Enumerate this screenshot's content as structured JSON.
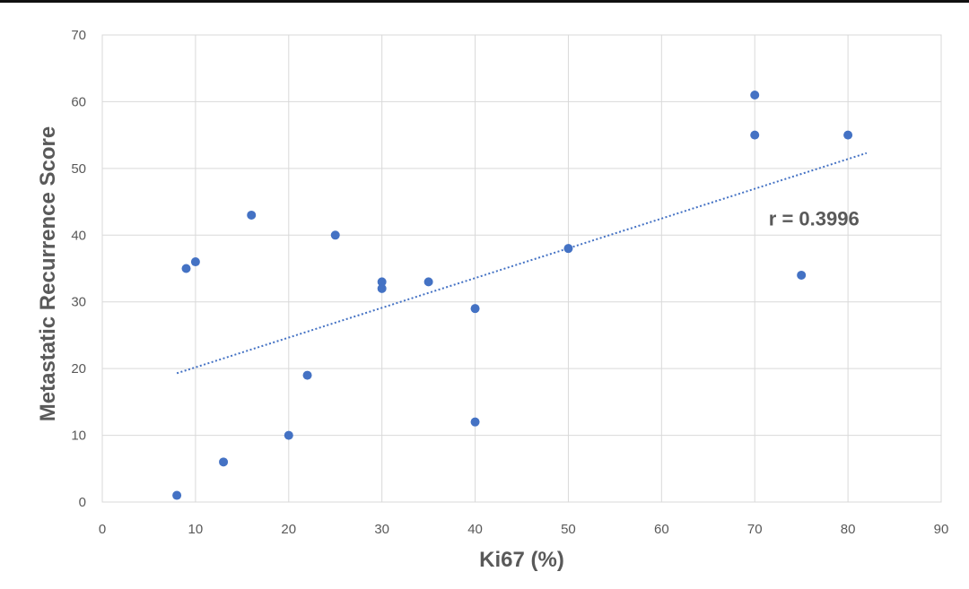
{
  "chart_data": {
    "type": "scatter",
    "title": "",
    "xlabel": "Ki67 (%)",
    "ylabel": "Metastatic Recurrence Score",
    "xlim": [
      0,
      90
    ],
    "ylim": [
      0,
      70
    ],
    "x_ticks": [
      0,
      10,
      20,
      30,
      40,
      50,
      60,
      70,
      80,
      90
    ],
    "y_ticks": [
      0,
      10,
      20,
      30,
      40,
      50,
      60,
      70
    ],
    "grid": true,
    "legend": "none",
    "point_color": "#4472c4",
    "series": [
      {
        "points": [
          {
            "x": 8,
            "y": 1
          },
          {
            "x": 9,
            "y": 35
          },
          {
            "x": 10,
            "y": 36
          },
          {
            "x": 13,
            "y": 6
          },
          {
            "x": 16,
            "y": 43
          },
          {
            "x": 20,
            "y": 10
          },
          {
            "x": 22,
            "y": 19
          },
          {
            "x": 25,
            "y": 40
          },
          {
            "x": 30,
            "y": 33
          },
          {
            "x": 30,
            "y": 32
          },
          {
            "x": 35,
            "y": 33
          },
          {
            "x": 40,
            "y": 29
          },
          {
            "x": 40,
            "y": 12
          },
          {
            "x": 50,
            "y": 38
          },
          {
            "x": 70,
            "y": 61
          },
          {
            "x": 70,
            "y": 55
          },
          {
            "x": 75,
            "y": 34
          },
          {
            "x": 80,
            "y": 55
          }
        ]
      }
    ],
    "trendline": {
      "style": "dotted",
      "color": "#4472c4",
      "from": {
        "x": 8,
        "y": 19.3
      },
      "to": {
        "x": 82,
        "y": 52.3
      }
    },
    "annotation": {
      "text": "r = 0.3996",
      "x": 71.5,
      "y": 42.5
    }
  }
}
